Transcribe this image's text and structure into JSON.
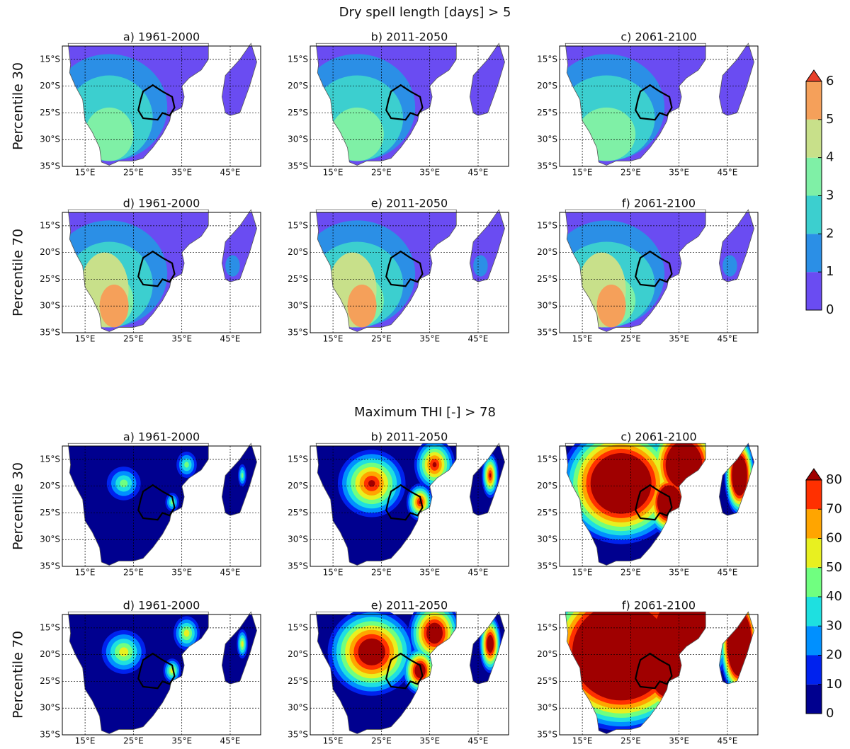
{
  "figures": [
    {
      "title": "Dry spell length [days] > 5",
      "rows": [
        "Percentile 30",
        "Percentile 70"
      ],
      "panels": [
        "a) 1961-2000",
        "b) 2011-2050",
        "c) 2061-2100",
        "d) 1961-2000",
        "e) 2011-2050",
        "f) 2061-2100"
      ],
      "colorbar": {
        "ticks": [
          0,
          1,
          2,
          3,
          4,
          5,
          6
        ],
        "colors": [
          "#6a4cf2",
          "#2b8fe6",
          "#3ccfcf",
          "#7ff0a6",
          "#c8e08a",
          "#f5a05a"
        ],
        "extend_color": "#e8402a"
      }
    },
    {
      "title": "Maximum THI [-] > 78",
      "rows": [
        "Percentile 30",
        "Percentile 70"
      ],
      "panels": [
        "a) 1961-2000",
        "b) 2011-2050",
        "c) 2061-2100",
        "d) 1961-2000",
        "e) 2011-2050",
        "f) 2061-2100"
      ],
      "colorbar": {
        "ticks": [
          0,
          10,
          20,
          30,
          40,
          50,
          60,
          70,
          80
        ],
        "colors": [
          "#00008f",
          "#0022ee",
          "#0090ff",
          "#1ee0e0",
          "#70ff80",
          "#e8f020",
          "#ffa500",
          "#ff3000"
        ],
        "extend_color": "#a00000"
      }
    }
  ],
  "map": {
    "xlim": [
      10.3,
      51.3
    ],
    "ylim": [
      -35,
      -12.5
    ],
    "xticks": [
      {
        "value": 15,
        "label": "15°E"
      },
      {
        "value": 25,
        "label": "25°E"
      },
      {
        "value": 35,
        "label": "35°E"
      },
      {
        "value": 45,
        "label": "45°E"
      }
    ],
    "yticks": [
      {
        "value": -15,
        "label": "15°S"
      },
      {
        "value": -20,
        "label": "20°S"
      },
      {
        "value": -25,
        "label": "25°S"
      },
      {
        "value": -30,
        "label": "30°S"
      },
      {
        "value": -35,
        "label": "35°S"
      }
    ]
  }
}
